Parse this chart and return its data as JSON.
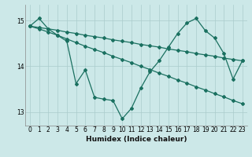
{
  "title": "",
  "xlabel": "Humidex (Indice chaleur)",
  "bg_color": "#cce8e8",
  "grid_color": "#aacccc",
  "line_color": "#1a7060",
  "xlim": [
    -0.5,
    23.5
  ],
  "ylim": [
    12.7,
    15.35
  ],
  "yticks": [
    13,
    14,
    15
  ],
  "xticks": [
    0,
    1,
    2,
    3,
    4,
    5,
    6,
    7,
    8,
    9,
    10,
    11,
    12,
    13,
    14,
    15,
    16,
    17,
    18,
    19,
    20,
    21,
    22,
    23
  ],
  "s1": [
    14.88,
    15.05,
    14.82,
    14.68,
    14.55,
    13.62,
    13.92,
    13.32,
    13.28,
    13.25,
    12.85,
    13.08,
    13.52,
    13.88,
    14.12,
    14.42,
    14.72,
    14.95,
    15.05,
    14.78,
    14.62,
    14.28,
    13.72,
    14.12
  ],
  "s2": [
    14.88,
    14.85,
    14.82,
    14.79,
    14.75,
    14.72,
    14.68,
    14.65,
    14.62,
    14.58,
    14.55,
    14.52,
    14.48,
    14.45,
    14.42,
    14.38,
    14.35,
    14.32,
    14.28,
    14.25,
    14.22,
    14.18,
    14.15,
    14.12
  ],
  "s3": [
    14.88,
    14.82,
    14.75,
    14.68,
    14.6,
    14.52,
    14.44,
    14.37,
    14.3,
    14.22,
    14.15,
    14.08,
    14.0,
    13.93,
    13.85,
    13.78,
    13.7,
    13.63,
    13.55,
    13.48,
    13.4,
    13.33,
    13.25,
    13.18
  ]
}
